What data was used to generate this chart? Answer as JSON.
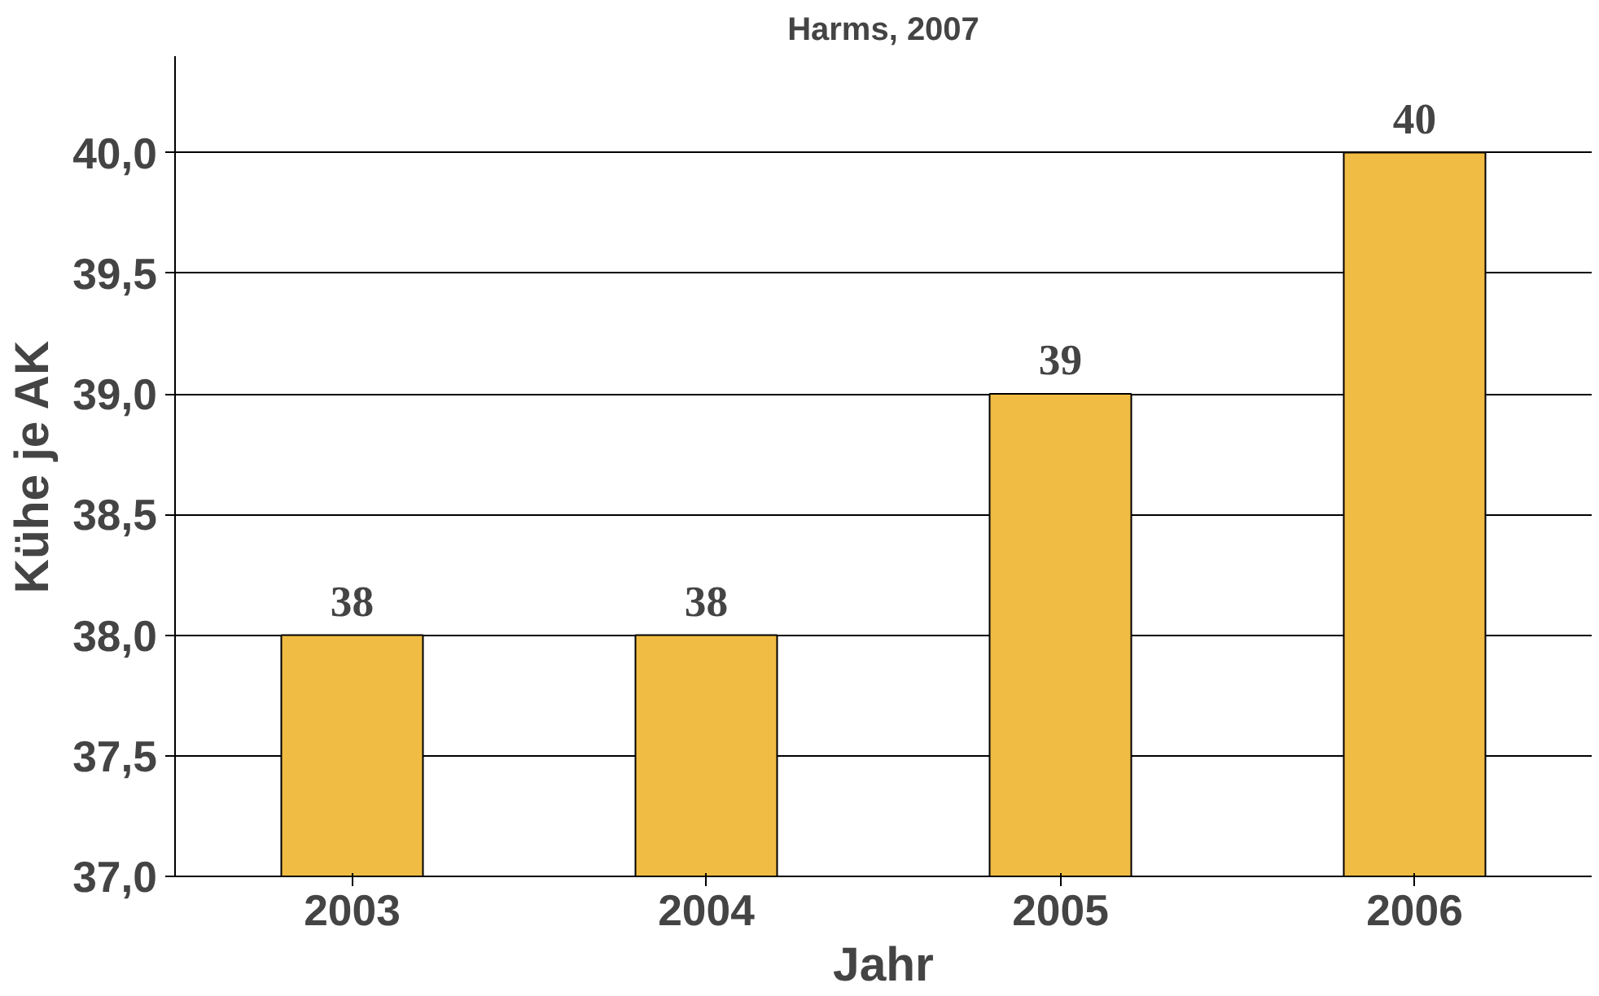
{
  "chart_data": {
    "type": "bar",
    "title": "Harms, 2007",
    "xlabel": "Jahr",
    "ylabel": "Kühe je AK",
    "categories": [
      "2003",
      "2004",
      "2005",
      "2006"
    ],
    "values": [
      38,
      38,
      39,
      40
    ],
    "color": "#f0bc44",
    "ylim": [
      37,
      40.4
    ],
    "yticks": [
      {
        "value": 37,
        "label": "37,0"
      },
      {
        "value": 37.5,
        "label": "37,5"
      },
      {
        "value": 38,
        "label": "38,0"
      },
      {
        "value": 38.5,
        "label": "38,5"
      },
      {
        "value": 39,
        "label": "39,0"
      },
      {
        "value": 39.5,
        "label": "39,5"
      },
      {
        "value": 40,
        "label": "40,0"
      }
    ],
    "grid": "y",
    "data_labels": true
  }
}
